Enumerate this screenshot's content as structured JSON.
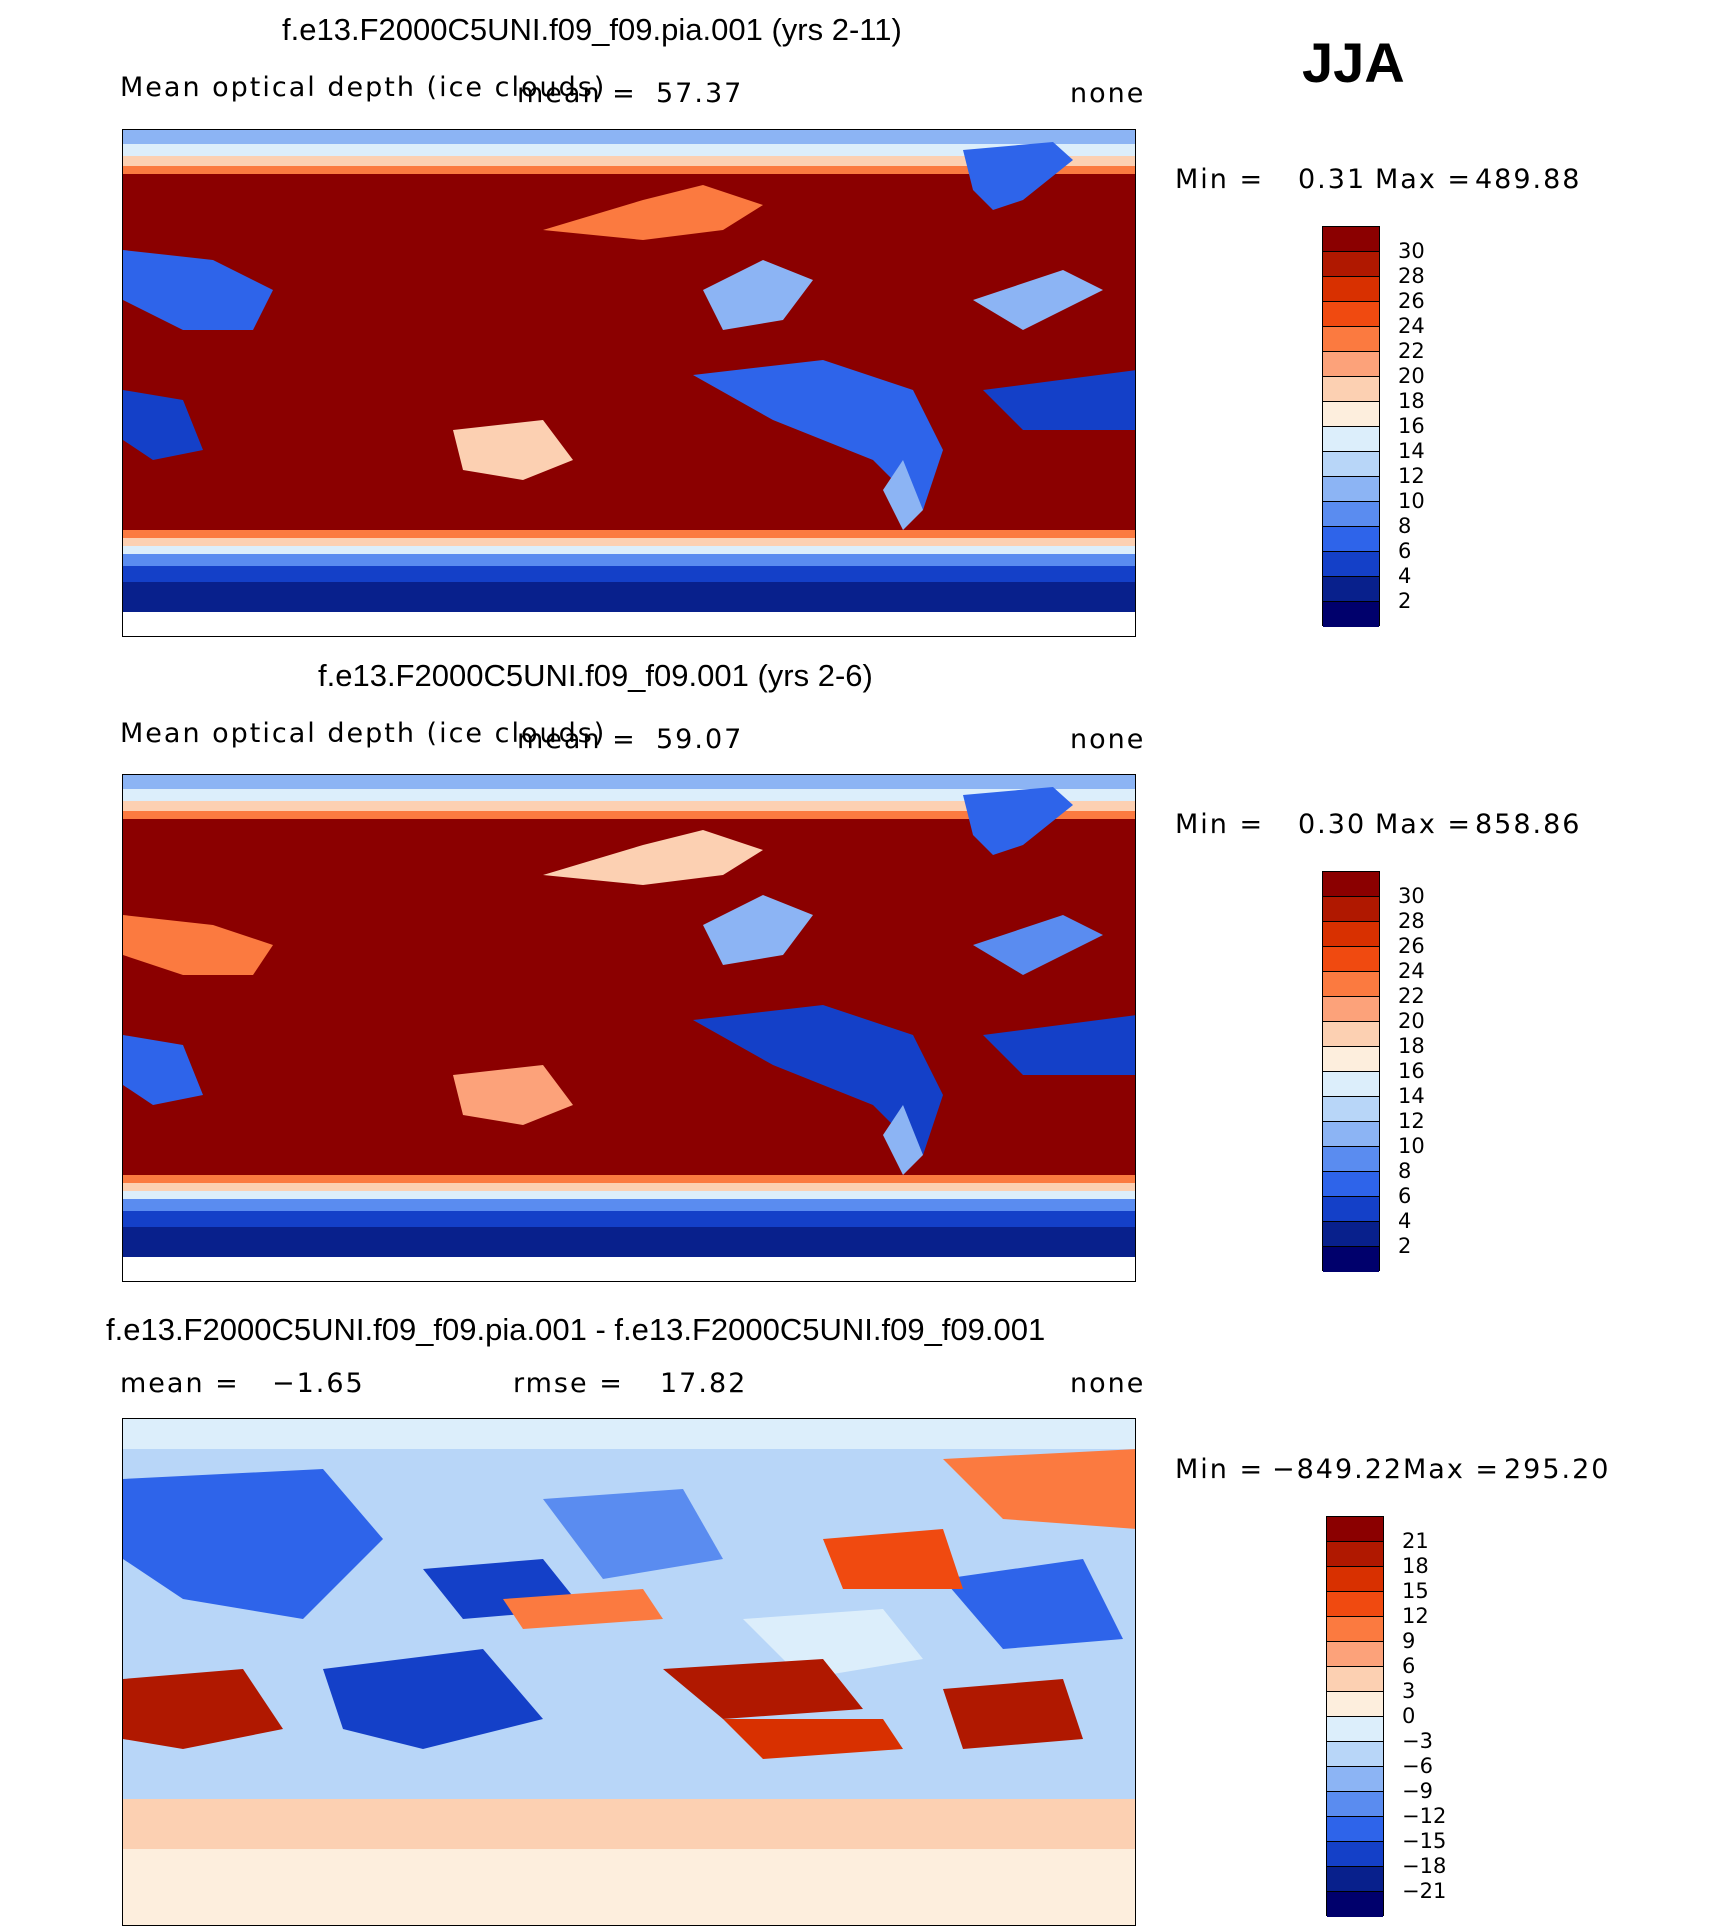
{
  "season": "JJA",
  "panels": [
    {
      "title": "f.e13.F2000C5UNI.f09_f09.pia.001 (yrs 2-11)",
      "variable": "Mean optical depth (ice clouds)",
      "mean_label": "mean =",
      "mean_value": "57.37",
      "units": "none",
      "min_label": "Min =",
      "min_value": "0.31",
      "max_label": "Max =",
      "max_value": "489.88",
      "colorbar_labels": [
        "30",
        "28",
        "26",
        "24",
        "22",
        "20",
        "18",
        "16",
        "14",
        "12",
        "10",
        "8",
        "6",
        "4",
        "2"
      ]
    },
    {
      "title": "f.e13.F2000C5UNI.f09_f09.001 (yrs 2-6)",
      "variable": "Mean optical depth (ice clouds)",
      "mean_label": "mean =",
      "mean_value": "59.07",
      "units": "none",
      "min_label": "Min =",
      "min_value": "0.30",
      "max_label": "Max =",
      "max_value": "858.86",
      "colorbar_labels": [
        "30",
        "28",
        "26",
        "24",
        "22",
        "20",
        "18",
        "16",
        "14",
        "12",
        "10",
        "8",
        "6",
        "4",
        "2"
      ]
    },
    {
      "title": "f.e13.F2000C5UNI.f09_f09.pia.001 - f.e13.F2000C5UNI.f09_f09.001",
      "mean_label": "mean =",
      "mean_value": "−1.65",
      "rmse_label": "rmse =",
      "rmse_value": "17.82",
      "units": "none",
      "min_label": "Min =",
      "min_value": "−849.22",
      "max_label": "Max =",
      "max_value": "295.20",
      "colorbar_labels": [
        "21",
        "18",
        "15",
        "12",
        "9",
        "6",
        "3",
        "0",
        "−3",
        "−6",
        "−9",
        "−12",
        "−15",
        "−18",
        "−21"
      ]
    }
  ],
  "colors": {
    "abs_scale": [
      "#8b0000",
      "#b01800",
      "#d83000",
      "#f04a10",
      "#fb7a40",
      "#fca27a",
      "#fcd0b2",
      "#fdeedd",
      "#dceefb",
      "#b8d6f8",
      "#8cb4f4",
      "#5a8cf0",
      "#2e64ea",
      "#1440c8",
      "#08208c",
      "#00006c"
    ],
    "diff_scale": [
      "#8b0000",
      "#b01800",
      "#d83000",
      "#f04a10",
      "#fb7a40",
      "#fca27a",
      "#fcd0b2",
      "#fdeedd",
      "#dceefb",
      "#b8d6f8",
      "#8cb4f4",
      "#5a8cf0",
      "#2e64ea",
      "#1440c8",
      "#08208c",
      "#00006c"
    ]
  }
}
